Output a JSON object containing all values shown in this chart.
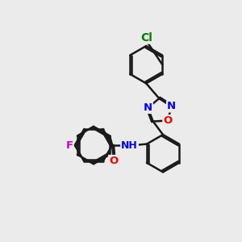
{
  "background_color": "#ebebeb",
  "bond_color": "#1a1a1a",
  "bond_width": 1.8,
  "atom_colors": {
    "Cl": "#008000",
    "F": "#cc00cc",
    "N": "#0000ff",
    "O": "#ff0000",
    "H": "#666666",
    "C": "#1a1a1a"
  },
  "font_size": 9.5
}
